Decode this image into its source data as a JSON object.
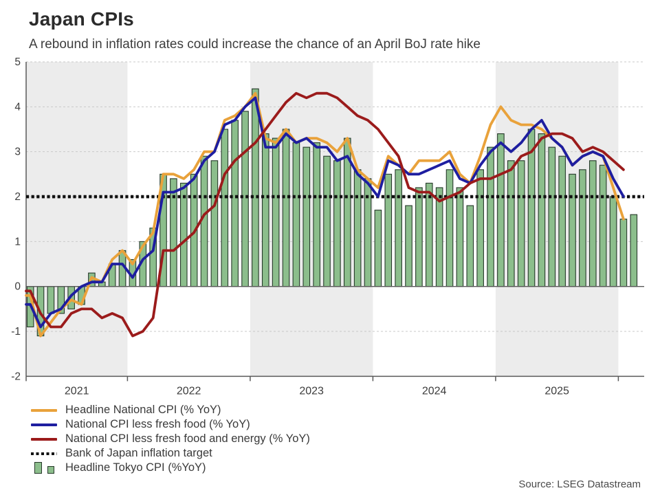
{
  "header": {
    "title": "Japan CPIs",
    "subtitle": "A rebound in inflation rates could increase the chance of an April BoJ rate hike"
  },
  "source_note": "Source: LSEG Datastream",
  "colors": {
    "headline_national": "#E9A23B",
    "core": "#1E1EA0",
    "core_core": "#9B1B1B",
    "target": "#111111",
    "tokyo_bar_fill": "#8CBE8C",
    "tokyo_bar_border": "#26392A",
    "band": "#ECECEC",
    "grid": "#C9C9C9",
    "axis": "#595959",
    "tick_text": "#3C3C3C"
  },
  "legend": {
    "items": [
      {
        "label": "Headline National CPI (% YoY)",
        "type": "line",
        "color": "#E9A23B"
      },
      {
        "label": "National CPI less fresh food (% YoY)",
        "type": "line",
        "color": "#1E1EA0"
      },
      {
        "label": "National CPI less fresh food and energy (% YoY)",
        "type": "line",
        "color": "#9B1B1B"
      },
      {
        "label": "Bank of Japan inflation target",
        "type": "dotted",
        "color": "#111111"
      },
      {
        "label": "Headline Tokyo CPI (%YoY)",
        "type": "bars",
        "color": "#8CBE8C"
      }
    ]
  },
  "chart_data": {
    "type": "bar+line",
    "title": "Japan CPIs",
    "ylim": [
      -2,
      5
    ],
    "y_ticks": [
      5,
      4,
      3,
      2,
      1,
      0,
      -1,
      -2
    ],
    "x_tick_years": [
      "2021",
      "2022",
      "2023",
      "2024",
      "2025"
    ],
    "grid": "horizontal-dashed",
    "legend_position": "bottom-left",
    "target_line": {
      "name": "Bank of Japan inflation target",
      "value": 2
    },
    "months": [
      "Mar 2021",
      "Apr 2021",
      "May 2021",
      "Jun 2021",
      "Jul 2021",
      "Aug 2021",
      "Sep 2021",
      "Oct 2021",
      "Nov 2021",
      "Dec 2021",
      "Jan 2022",
      "Feb 2022",
      "Mar 2022",
      "Apr 2022",
      "May 2022",
      "Jun 2022",
      "Jul 2022",
      "Aug 2022",
      "Sep 2022",
      "Oct 2022",
      "Nov 2022",
      "Dec 2022",
      "Jan 2023",
      "Feb 2023",
      "Mar 2023",
      "Apr 2023",
      "May 2023",
      "Jun 2023",
      "Jul 2023",
      "Aug 2023",
      "Sep 2023",
      "Oct 2023",
      "Nov 2023",
      "Dec 2023",
      "Jan 2024",
      "Feb 2024",
      "Mar 2024",
      "Apr 2024",
      "May 2024",
      "Jun 2024",
      "Jul 2024",
      "Aug 2024",
      "Sep 2024",
      "Oct 2024",
      "Nov 2024",
      "Dec 2024",
      "Jan 2025",
      "Feb 2025",
      "Mar 2025",
      "Apr 2025",
      "May 2025",
      "Jun 2025",
      "Jul 2025",
      "Aug 2025",
      "Sep 2025",
      "Oct 2025",
      "Nov 2025",
      "Dec 2025",
      "Jan 2026",
      "Feb 2026"
    ],
    "bar_series": {
      "name": "Headline Tokyo CPI (%YoY)",
      "values": [
        -0.9,
        -1.1,
        -0.6,
        -0.6,
        -0.5,
        -0.4,
        0.3,
        0.1,
        0.5,
        0.8,
        0.6,
        1.0,
        1.3,
        2.5,
        2.4,
        2.3,
        2.5,
        2.9,
        2.8,
        3.5,
        3.7,
        3.9,
        4.4,
        3.4,
        3.3,
        3.5,
        3.2,
        3.1,
        3.2,
        2.9,
        2.8,
        3.3,
        2.6,
        2.4,
        1.7,
        2.5,
        2.6,
        1.8,
        2.2,
        2.3,
        2.2,
        2.6,
        2.2,
        1.8,
        2.6,
        3.1,
        3.4,
        2.8,
        2.8,
        3.5,
        3.4,
        3.1,
        2.9,
        2.5,
        2.6,
        2.8,
        2.7,
        2.0,
        1.5,
        1.6
      ]
    },
    "line_series": [
      {
        "name": "Headline National CPI (% YoY)",
        "values": [
          -0.2,
          -1.1,
          -0.8,
          -0.5,
          -0.3,
          -0.4,
          0.2,
          0.1,
          0.6,
          0.8,
          0.5,
          0.9,
          1.2,
          2.5,
          2.5,
          2.4,
          2.6,
          3.0,
          3.0,
          3.7,
          3.8,
          4.0,
          4.3,
          3.3,
          3.2,
          3.5,
          3.2,
          3.3,
          3.3,
          3.2,
          3.0,
          3.3,
          2.6,
          2.4,
          2.2,
          2.9,
          2.7,
          2.5,
          2.8,
          2.8,
          2.8,
          3.0,
          2.5,
          2.3,
          2.9,
          3.6,
          4.0,
          3.7,
          3.6,
          3.6,
          3.5,
          3.3,
          3.1,
          2.7,
          2.9,
          3.0,
          2.9,
          2.2,
          1.5
        ]
      },
      {
        "name": "National CPI less fresh food (% YoY)",
        "values": [
          -0.4,
          -0.9,
          -0.6,
          -0.5,
          -0.2,
          0.0,
          0.1,
          0.1,
          0.5,
          0.5,
          0.2,
          0.6,
          0.8,
          2.1,
          2.1,
          2.2,
          2.4,
          2.8,
          3.0,
          3.6,
          3.7,
          4.0,
          4.2,
          3.1,
          3.1,
          3.4,
          3.2,
          3.3,
          3.1,
          3.1,
          2.8,
          2.9,
          2.5,
          2.3,
          2.0,
          2.8,
          2.7,
          2.5,
          2.5,
          2.6,
          2.7,
          2.8,
          2.4,
          2.3,
          2.7,
          3.0,
          3.2,
          3.0,
          3.2,
          3.5,
          3.7,
          3.3,
          3.1,
          2.7,
          2.9,
          3.0,
          2.9,
          2.4,
          2.0
        ]
      },
      {
        "name": "National CPI less fresh food and energy (% YoY)",
        "values": [
          -0.1,
          -0.6,
          -0.9,
          -0.9,
          -0.6,
          -0.5,
          -0.5,
          -0.7,
          -0.6,
          -0.7,
          -1.1,
          -1.0,
          -0.7,
          0.8,
          0.8,
          1.0,
          1.2,
          1.6,
          1.8,
          2.5,
          2.8,
          3.0,
          3.2,
          3.5,
          3.8,
          4.1,
          4.3,
          4.2,
          4.3,
          4.3,
          4.2,
          4.0,
          3.8,
          3.7,
          3.5,
          3.2,
          2.9,
          2.2,
          2.1,
          2.1,
          1.9,
          2.0,
          2.1,
          2.3,
          2.4,
          2.4,
          2.5,
          2.6,
          2.9,
          3.0,
          3.3,
          3.4,
          3.4,
          3.3,
          3.0,
          3.1,
          3.0,
          2.8,
          2.6
        ]
      }
    ]
  }
}
